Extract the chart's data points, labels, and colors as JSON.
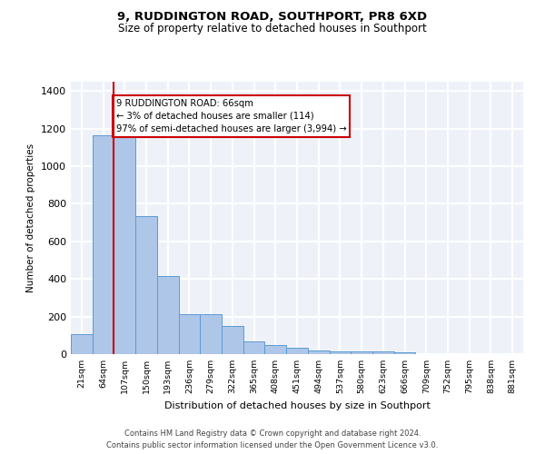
{
  "title1": "9, RUDDINGTON ROAD, SOUTHPORT, PR8 6XD",
  "title2": "Size of property relative to detached houses in Southport",
  "xlabel": "Distribution of detached houses by size in Southport",
  "ylabel": "Number of detached properties",
  "categories": [
    "21sqm",
    "64sqm",
    "107sqm",
    "150sqm",
    "193sqm",
    "236sqm",
    "279sqm",
    "322sqm",
    "365sqm",
    "408sqm",
    "451sqm",
    "494sqm",
    "537sqm",
    "580sqm",
    "623sqm",
    "666sqm",
    "709sqm",
    "752sqm",
    "795sqm",
    "838sqm",
    "881sqm"
  ],
  "bar_values": [
    105,
    1165,
    1165,
    735,
    415,
    215,
    215,
    150,
    70,
    50,
    35,
    20,
    15,
    15,
    15,
    12,
    0,
    0,
    0,
    0,
    0
  ],
  "bar_color": "#aec6e8",
  "bar_edgecolor": "#5b9bd5",
  "annotation_box_text": "9 RUDDINGTON ROAD: 66sqm\n← 3% of detached houses are smaller (114)\n97% of semi-detached houses are larger (3,994) →",
  "annotation_box_color": "#cc0000",
  "red_line_x": 1.5,
  "ylim": [
    0,
    1450
  ],
  "yticks": [
    0,
    200,
    400,
    600,
    800,
    1000,
    1200,
    1400
  ],
  "footnote1": "Contains HM Land Registry data © Crown copyright and database right 2024.",
  "footnote2": "Contains public sector information licensed under the Open Government Licence v3.0.",
  "bg_color": "#eef2f8",
  "grid_color": "#ffffff",
  "title1_fontsize": 9.5,
  "title2_fontsize": 8.5
}
